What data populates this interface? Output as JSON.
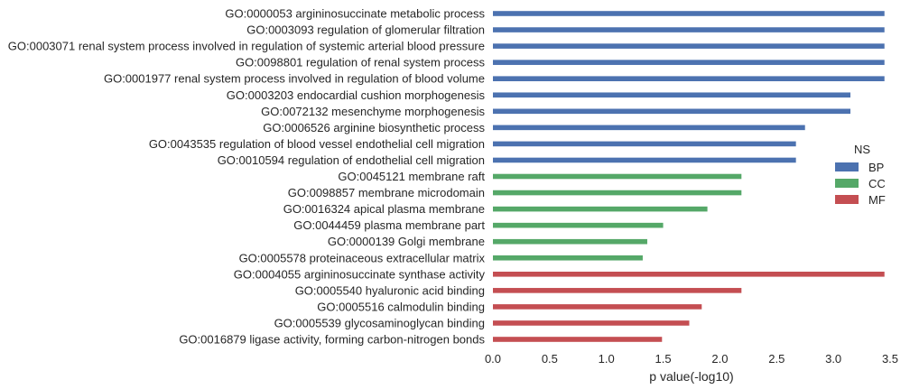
{
  "chart_data": {
    "type": "bar",
    "orientation": "horizontal",
    "xlabel": "p value(-log10)",
    "xlim": [
      0,
      3.5
    ],
    "xticks": [
      "0.0",
      "0.5",
      "1.0",
      "1.5",
      "2.0",
      "2.5",
      "3.0",
      "3.5"
    ],
    "grid": false,
    "legend": {
      "title": "NS",
      "placement": "right",
      "entries": [
        {
          "name": "BP",
          "color": "#4c72b0"
        },
        {
          "name": "CC",
          "color": "#55a868"
        },
        {
          "name": "MF",
          "color": "#c44e52"
        }
      ]
    },
    "categories": [
      {
        "label": "GO:0000053 argininosuccinate metabolic process",
        "value": 3.45,
        "ns": "BP"
      },
      {
        "label": "GO:0003093 regulation of glomerular filtration",
        "value": 3.45,
        "ns": "BP"
      },
      {
        "label": "GO:0003071 renal system process involved in regulation of systemic arterial blood pressure",
        "value": 3.45,
        "ns": "BP"
      },
      {
        "label": "GO:0098801 regulation of renal system process",
        "value": 3.45,
        "ns": "BP"
      },
      {
        "label": "GO:0001977 renal system process involved in regulation of blood volume",
        "value": 3.45,
        "ns": "BP"
      },
      {
        "label": "GO:0003203 endocardial cushion morphogenesis",
        "value": 3.15,
        "ns": "BP"
      },
      {
        "label": "GO:0072132 mesenchyme morphogenesis",
        "value": 3.15,
        "ns": "BP"
      },
      {
        "label": "GO:0006526 arginine biosynthetic process",
        "value": 2.75,
        "ns": "BP"
      },
      {
        "label": "GO:0043535 regulation of blood vessel endothelial cell migration",
        "value": 2.67,
        "ns": "BP"
      },
      {
        "label": "GO:0010594 regulation of endothelial cell migration",
        "value": 2.67,
        "ns": "BP"
      },
      {
        "label": "GO:0045121 membrane raft",
        "value": 2.19,
        "ns": "CC"
      },
      {
        "label": "GO:0098857 membrane microdomain",
        "value": 2.19,
        "ns": "CC"
      },
      {
        "label": "GO:0016324 apical plasma membrane",
        "value": 1.89,
        "ns": "CC"
      },
      {
        "label": "GO:0044459 plasma membrane part",
        "value": 1.5,
        "ns": "CC"
      },
      {
        "label": "GO:0000139 Golgi membrane",
        "value": 1.36,
        "ns": "CC"
      },
      {
        "label": "GO:0005578 proteinaceous extracellular matrix",
        "value": 1.32,
        "ns": "CC"
      },
      {
        "label": "GO:0004055 argininosuccinate synthase activity",
        "value": 3.45,
        "ns": "MF"
      },
      {
        "label": "GO:0005540 hyaluronic acid binding",
        "value": 2.19,
        "ns": "MF"
      },
      {
        "label": "GO:0005516 calmodulin binding",
        "value": 1.84,
        "ns": "MF"
      },
      {
        "label": "GO:0005539 glycosaminoglycan binding",
        "value": 1.73,
        "ns": "MF"
      },
      {
        "label": "GO:0016879 ligase activity, forming carbon-nitrogen bonds",
        "value": 1.49,
        "ns": "MF"
      }
    ]
  }
}
